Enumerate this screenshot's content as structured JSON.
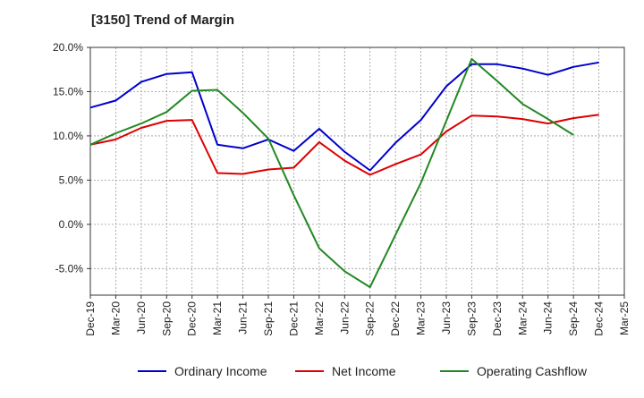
{
  "chart_data": {
    "type": "line",
    "title": "[3150]  Trend of Margin",
    "xlabel": "",
    "ylabel": "",
    "categories": [
      "Dec-19",
      "Mar-20",
      "Jun-20",
      "Sep-20",
      "Dec-20",
      "Mar-21",
      "Jun-21",
      "Sep-21",
      "Dec-21",
      "Mar-22",
      "Jun-22",
      "Sep-22",
      "Dec-22",
      "Mar-23",
      "Jun-23",
      "Sep-23",
      "Dec-23",
      "Mar-24",
      "Jun-24",
      "Sep-24",
      "Dec-24",
      "Mar-25"
    ],
    "ylim": [
      -8.0,
      20.0
    ],
    "yticks": [
      -5.0,
      0.0,
      5.0,
      10.0,
      15.0,
      20.0
    ],
    "ytick_labels": [
      "-5.0%",
      "0.0%",
      "5.0%",
      "10.0%",
      "15.0%",
      "20.0%"
    ],
    "grid": true,
    "legend_position": "bottom",
    "series": [
      {
        "name": "Ordinary Income",
        "color": "#0000cc",
        "values": [
          13.2,
          14.0,
          16.1,
          17.0,
          17.2,
          9.0,
          8.6,
          9.6,
          8.3,
          10.8,
          8.2,
          6.1,
          9.2,
          11.8,
          15.6,
          18.1,
          18.1,
          17.6,
          16.9,
          17.8,
          18.3,
          null
        ]
      },
      {
        "name": "Net Income",
        "color": "#dd0000",
        "values": [
          9.0,
          9.6,
          10.9,
          11.7,
          11.8,
          5.8,
          5.7,
          6.2,
          6.4,
          9.3,
          7.2,
          5.6,
          6.8,
          7.9,
          10.5,
          12.3,
          12.2,
          11.9,
          11.4,
          12.0,
          12.4,
          null
        ]
      },
      {
        "name": "Operating Cashflow",
        "color": "#228822",
        "values": [
          9.0,
          10.3,
          11.4,
          12.7,
          15.1,
          15.2,
          12.6,
          9.7,
          3.3,
          -2.7,
          -5.3,
          -7.1,
          -1.2,
          4.7,
          11.7,
          18.7,
          16.2,
          13.6,
          11.9,
          10.1,
          null,
          null
        ]
      }
    ]
  }
}
